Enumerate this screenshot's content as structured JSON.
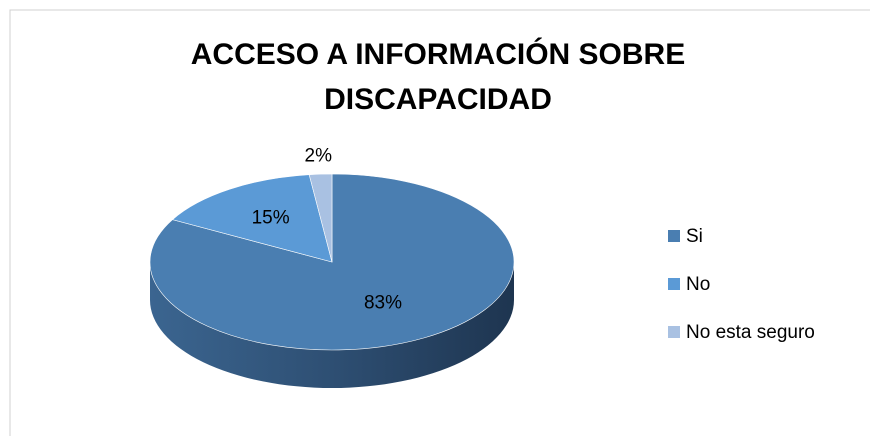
{
  "chart_data": {
    "type": "pie",
    "title": "ACCESO A INFORMACIÓN SOBRE DISCAPACIDAD",
    "categories": [
      "Si",
      "No",
      "No esta seguro"
    ],
    "values": [
      83,
      15,
      2
    ],
    "value_labels": [
      "83%",
      "15%",
      "2%"
    ],
    "colors": [
      "#4a7eb1",
      "#5b9ad6",
      "#a9c1e2"
    ],
    "legend": "right"
  }
}
